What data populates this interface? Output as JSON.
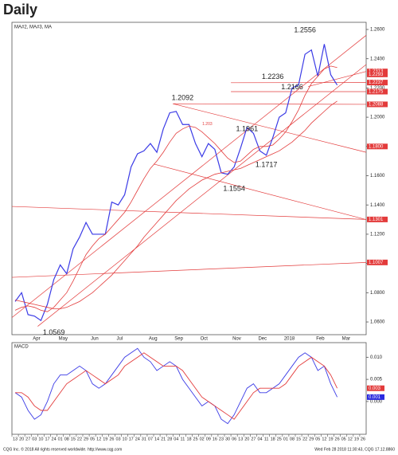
{
  "chart_data": {
    "type": "line",
    "title": "Daily",
    "legend_text": "MA#2, MA#3, MA",
    "subplot_title": "MACD",
    "footer_left": "CQG Inc. © 2018 All rights reserved worldwide. http://www.cqg.com",
    "footer_right": "Wed Feb 28 2018 11:30:43, CQG 17.12.8860",
    "categories": [
      "13",
      "20",
      "27",
      "03",
      "10",
      "17",
      "24",
      "01",
      "08",
      "15",
      "22",
      "29",
      "05",
      "12",
      "19",
      "26",
      "03",
      "10",
      "17",
      "24",
      "31",
      "07",
      "14",
      "21",
      "28",
      "04",
      "11",
      "18",
      "25",
      "02",
      "09",
      "16",
      "23",
      "30",
      "06",
      "13",
      "20",
      "27",
      "04",
      "11",
      "18",
      "25",
      "01",
      "08",
      "15",
      "22",
      "29",
      "05",
      "12",
      "19",
      "26",
      "05",
      "12",
      "19",
      "26"
    ],
    "month_labels": [
      {
        "label": "Apr",
        "x": 3
      },
      {
        "label": "May",
        "x": 7
      },
      {
        "label": "Jun",
        "x": 12
      },
      {
        "label": "Jul",
        "x": 16
      },
      {
        "label": "Aug",
        "x": 21
      },
      {
        "label": "Sep",
        "x": 25
      },
      {
        "label": "Oct",
        "x": 29
      },
      {
        "label": "Nov",
        "x": 34
      },
      {
        "label": "Dec",
        "x": 38
      },
      {
        "label": "2018",
        "x": 42
      },
      {
        "label": "Feb",
        "x": 47
      },
      {
        "label": "Mar",
        "x": 51
      }
    ],
    "ylim": [
      1.0513,
      1.2649
    ],
    "yticks": [
      {
        "value": 1.06,
        "label": "1.0600"
      },
      {
        "value": 1.08,
        "label": "1.0800"
      },
      {
        "value": 1.1,
        "label": "1.1000"
      },
      {
        "value": 1.12,
        "label": "1.1200"
      },
      {
        "value": 1.14,
        "label": "1.1400"
      },
      {
        "value": 1.16,
        "label": "1.1600"
      },
      {
        "value": 1.18,
        "label": "1.1800"
      },
      {
        "value": 1.2,
        "label": "1.2000"
      },
      {
        "value": 1.22,
        "label": "1.2200"
      },
      {
        "value": 1.24,
        "label": "1.2400"
      },
      {
        "value": 1.26,
        "label": "1.2600"
      }
    ],
    "series": [
      {
        "name": "Price",
        "color": "#3b3be6",
        "values": [
          1.074,
          1.08,
          1.065,
          1.064,
          1.061,
          1.072,
          1.089,
          1.099,
          1.093,
          1.11,
          1.118,
          1.128,
          1.12,
          1.12,
          1.12,
          1.142,
          1.14,
          1.147,
          1.166,
          1.175,
          1.177,
          1.182,
          1.176,
          1.192,
          1.203,
          1.204,
          1.195,
          1.195,
          1.182,
          1.173,
          1.182,
          1.178,
          1.162,
          1.161,
          1.166,
          1.179,
          1.193,
          1.189,
          1.177,
          1.174,
          1.186,
          1.2,
          1.203,
          1.22,
          1.222,
          1.243,
          1.246,
          1.228,
          1.25,
          1.229,
          1.222,
          null,
          null,
          null,
          null
        ]
      },
      {
        "name": "MA#2",
        "color": "#e33b3b",
        "values": [
          1.068,
          1.07,
          1.071,
          1.07,
          1.068,
          1.067,
          1.07,
          1.075,
          1.08,
          1.088,
          1.097,
          1.106,
          1.112,
          1.117,
          1.12,
          1.125,
          1.13,
          1.135,
          1.142,
          1.15,
          1.158,
          1.165,
          1.17,
          1.176,
          1.183,
          1.189,
          1.192,
          1.194,
          1.193,
          1.19,
          1.186,
          1.182,
          1.177,
          1.172,
          1.169,
          1.17,
          1.174,
          1.178,
          1.18,
          1.18,
          1.181,
          1.185,
          1.19,
          1.197,
          1.205,
          1.215,
          1.223,
          1.228,
          1.233,
          1.235,
          1.234,
          null,
          null,
          null,
          null
        ]
      },
      {
        "name": "MA#3",
        "color": "#e33b3b",
        "values": [
          1.075,
          1.074,
          1.073,
          1.072,
          1.071,
          1.07,
          1.069,
          1.069,
          1.07,
          1.072,
          1.074,
          1.077,
          1.08,
          1.084,
          1.088,
          1.092,
          1.097,
          1.102,
          1.107,
          1.112,
          1.118,
          1.123,
          1.128,
          1.133,
          1.138,
          1.143,
          1.147,
          1.151,
          1.154,
          1.157,
          1.159,
          1.161,
          1.162,
          1.163,
          1.164,
          1.165,
          1.167,
          1.169,
          1.171,
          1.173,
          1.175,
          1.177,
          1.18,
          1.183,
          1.187,
          1.191,
          1.196,
          1.2,
          1.204,
          1.208,
          1.211,
          null,
          null,
          null,
          null
        ]
      }
    ],
    "price_tags": [
      {
        "value": 1.2313,
        "color": "#e33b3b"
      },
      {
        "value": 1.2293,
        "color": "#e33b3b"
      },
      {
        "value": 1.2237,
        "color": "#e33b3b"
      },
      {
        "value": 1.2175,
        "color": "#e33b3b"
      },
      {
        "value": 1.2088,
        "color": "#e33b3b"
      },
      {
        "value": 1.18,
        "label": "1.1800",
        "color": "#e33b3b"
      },
      {
        "value": 1.1301,
        "color": "#e33b3b"
      },
      {
        "value": 1.1007,
        "color": "#e33b3b"
      }
    ],
    "annotations": [
      {
        "x": 45,
        "value": 1.2556
      },
      {
        "x": 40,
        "value": 1.2236
      },
      {
        "x": 43,
        "value": 1.2166
      },
      {
        "x": 26,
        "value": 1.2092
      },
      {
        "x": 36,
        "value": 1.1961
      },
      {
        "x": 39,
        "value": 1.1717
      },
      {
        "x": 34,
        "value": 1.1554
      },
      {
        "x": 6,
        "value": 1.0569
      }
    ],
    "small_annotation": {
      "x": 34,
      "value": 1.203,
      "color": "#e33b3b"
    },
    "trendlines": [
      {
        "x": [
          25,
          55
        ],
        "y": [
          1.2092,
          1.2088
        ]
      },
      {
        "x": [
          25,
          55
        ],
        "y": [
          1.2092,
          1.176
        ]
      },
      {
        "x": [
          0,
          55
        ],
        "y": [
          1.139,
          1.1301
        ]
      },
      {
        "x": [
          22,
          55
        ],
        "y": [
          1.168,
          1.13
        ]
      },
      {
        "x": [
          0,
          55
        ],
        "y": [
          1.0905,
          1.1007
        ]
      },
      {
        "x": [
          4,
          55
        ],
        "y": [
          1.057,
          1.236
        ]
      },
      {
        "x": [
          0,
          55
        ],
        "y": [
          1.063,
          1.256
        ]
      },
      {
        "x": [
          34,
          55
        ],
        "y": [
          1.2236,
          1.2237
        ]
      },
      {
        "x": [
          34,
          55
        ],
        "y": [
          1.2175,
          1.2175
        ]
      },
      {
        "x": [
          46,
          55
        ],
        "y": [
          1.221,
          1.2313
        ]
      }
    ],
    "trend_color": "#e33b3b",
    "macd": {
      "ylim": [
        -0.0074,
        0.0133
      ],
      "yticks": [
        {
          "value": 0,
          "label": "0.000"
        },
        {
          "value": 0.005,
          "label": "0.005"
        },
        {
          "value": 0.01,
          "label": "0.010"
        }
      ],
      "series": [
        {
          "name": "MACD",
          "color": "#3b3be6",
          "values": [
            0.002,
            0.001,
            -0.002,
            -0.004,
            -0.003,
            0.0,
            0.004,
            0.006,
            0.006,
            0.007,
            0.008,
            0.007,
            0.004,
            0.003,
            0.004,
            0.006,
            0.008,
            0.01,
            0.011,
            0.012,
            0.01,
            0.009,
            0.007,
            0.008,
            0.009,
            0.008,
            0.005,
            0.003,
            0.001,
            -0.001,
            0.0,
            -0.001,
            -0.004,
            -0.005,
            -0.003,
            0.0,
            0.003,
            0.004,
            0.002,
            0.002,
            0.003,
            0.004,
            0.006,
            0.008,
            0.01,
            0.011,
            0.01,
            0.007,
            0.008,
            0.004,
            0.001,
            null,
            null,
            null,
            null
          ]
        },
        {
          "name": "Signal",
          "color": "#e33b3b",
          "values": [
            0.002,
            0.002,
            0.001,
            -0.001,
            -0.002,
            -0.002,
            0.0,
            0.002,
            0.004,
            0.005,
            0.006,
            0.007,
            0.006,
            0.005,
            0.004,
            0.005,
            0.006,
            0.008,
            0.009,
            0.01,
            0.011,
            0.01,
            0.009,
            0.008,
            0.008,
            0.008,
            0.007,
            0.005,
            0.003,
            0.001,
            0.0,
            -0.001,
            -0.002,
            -0.003,
            -0.004,
            -0.002,
            0.0,
            0.002,
            0.003,
            0.003,
            0.003,
            0.003,
            0.004,
            0.006,
            0.008,
            0.009,
            0.01,
            0.009,
            0.008,
            0.006,
            0.003,
            null,
            null,
            null,
            null
          ]
        }
      ],
      "tags": [
        {
          "value": 0.003,
          "label": "0.003",
          "color": "#e33b3b"
        },
        {
          "value": 0.001,
          "label": "0.001",
          "color": "#2a2ae0"
        }
      ]
    }
  }
}
